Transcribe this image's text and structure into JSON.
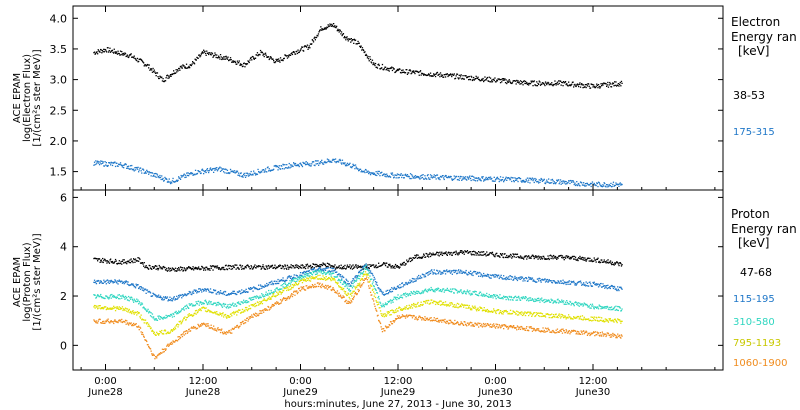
{
  "chart_data": [
    {
      "type": "scatter",
      "ylabel_lines": [
        "ACE EPAM",
        "log(Electron Flux)",
        "[1/(cm²s ster MeV)]"
      ],
      "ylim": [
        1.2,
        4.2
      ],
      "yticks": [
        1.5,
        2.0,
        2.5,
        3.0,
        3.5,
        4.0
      ],
      "ytick_labels": [
        "1.5",
        "2.0",
        "2.5",
        "3.0",
        "3.5",
        "4.0"
      ],
      "legend_title": [
        "Electron",
        "Energy ran",
        "[keV]"
      ],
      "series": [
        {
          "name": "38-53",
          "color": "#000000",
          "x": [
            -1.5,
            0,
            3,
            5,
            7,
            9,
            10.5,
            12,
            15,
            17,
            19,
            21,
            23,
            25,
            26.5,
            28,
            29.5,
            31,
            33,
            36,
            40,
            44,
            48,
            52,
            56,
            60,
            63.5
          ],
          "y": [
            3.45,
            3.5,
            3.4,
            3.25,
            3.0,
            3.2,
            3.25,
            3.45,
            3.35,
            3.25,
            3.45,
            3.3,
            3.45,
            3.55,
            3.85,
            3.9,
            3.7,
            3.6,
            3.25,
            3.15,
            3.1,
            3.05,
            3.0,
            2.95,
            2.95,
            2.9,
            2.95
          ]
        },
        {
          "name": "175-315",
          "color": "#1f77c8",
          "x": [
            -1.5,
            2,
            5,
            8,
            11,
            14,
            17,
            20,
            23,
            26,
            28,
            30,
            32,
            35,
            40,
            45,
            50,
            55,
            60,
            63.5
          ],
          "y": [
            1.65,
            1.62,
            1.5,
            1.35,
            1.5,
            1.55,
            1.45,
            1.55,
            1.62,
            1.65,
            1.7,
            1.62,
            1.5,
            1.45,
            1.42,
            1.4,
            1.38,
            1.35,
            1.3,
            1.3
          ]
        }
      ]
    },
    {
      "type": "scatter",
      "ylabel_lines": [
        "ACE EPAM",
        "log(Proton Flux)",
        "[1/(cm²s ster MeV)]"
      ],
      "ylim": [
        -1.0,
        6.3
      ],
      "yticks": [
        0,
        2,
        4,
        6
      ],
      "ytick_labels": [
        "0",
        "2",
        "4",
        "6"
      ],
      "legend_title": [
        "Proton",
        "Energy ran",
        "[keV]"
      ],
      "xlabel": "hours:minutes, June 27, 2013 - June 30, 2013",
      "xticks": [
        0,
        12,
        24,
        36,
        48,
        60
      ],
      "xtick_labels": [
        [
          "0:00",
          "June28"
        ],
        [
          "12:00",
          "June28"
        ],
        [
          "0:00",
          "June29"
        ],
        [
          "12:00",
          "June29"
        ],
        [
          "0:00",
          "June30"
        ],
        [
          "12:00",
          "June30"
        ]
      ],
      "xlim": [
        -4,
        76
      ],
      "series": [
        {
          "name": "47-68",
          "color": "#000000",
          "x": [
            -1.5,
            2,
            4,
            5,
            6,
            8,
            12,
            16,
            20,
            24,
            27,
            28,
            32,
            34,
            36,
            38,
            40,
            44,
            48,
            52,
            56,
            60,
            62,
            63.5
          ],
          "y": [
            3.5,
            3.4,
            3.5,
            3.2,
            3.2,
            3.1,
            3.15,
            3.2,
            3.2,
            3.2,
            3.3,
            3.2,
            3.2,
            3.3,
            3.2,
            3.6,
            3.7,
            3.8,
            3.7,
            3.6,
            3.6,
            3.5,
            3.4,
            3.3
          ]
        },
        {
          "name": "115-195",
          "color": "#1f77c8",
          "x": [
            -1.5,
            2,
            4,
            6,
            8,
            10,
            12,
            15,
            18,
            21,
            24,
            26,
            28,
            30,
            32,
            34,
            36,
            40,
            44,
            48,
            52,
            56,
            60,
            63.5
          ],
          "y": [
            2.6,
            2.6,
            2.4,
            2.0,
            1.9,
            2.1,
            2.3,
            2.1,
            2.3,
            2.6,
            2.9,
            3.1,
            3.1,
            2.5,
            3.3,
            2.1,
            2.4,
            3.0,
            3.0,
            2.8,
            2.7,
            2.6,
            2.5,
            2.3
          ]
        },
        {
          "name": "310-580",
          "color": "#2fd6c0",
          "x": [
            -1.5,
            2,
            4,
            6,
            8,
            10,
            12,
            15,
            18,
            21,
            24,
            26,
            28,
            30,
            32,
            34,
            36,
            40,
            44,
            48,
            52,
            56,
            60,
            63.5
          ],
          "y": [
            2.0,
            2.0,
            1.8,
            1.1,
            1.2,
            1.6,
            1.8,
            1.6,
            1.9,
            2.3,
            2.8,
            3.0,
            2.9,
            2.3,
            3.2,
            1.6,
            2.0,
            2.3,
            2.2,
            2.0,
            1.9,
            1.8,
            1.6,
            1.5
          ]
        },
        {
          "name": "795-1193",
          "color": "#e0e000",
          "x": [
            -1.5,
            2,
            4,
            6,
            8,
            10,
            12,
            15,
            18,
            21,
            24,
            26,
            28,
            30,
            32,
            34,
            36,
            40,
            44,
            48,
            52,
            56,
            60,
            63.5
          ],
          "y": [
            1.6,
            1.5,
            1.3,
            0.5,
            0.6,
            1.2,
            1.5,
            1.2,
            1.6,
            2.1,
            2.6,
            2.8,
            2.7,
            2.0,
            3.0,
            1.2,
            1.5,
            1.8,
            1.6,
            1.4,
            1.3,
            1.2,
            1.1,
            1.0
          ]
        },
        {
          "name": "1060-1900",
          "color": "#f08c1e",
          "x": [
            -1.5,
            2,
            4,
            6,
            8,
            10,
            12,
            15,
            18,
            21,
            24,
            26,
            28,
            30,
            32,
            34,
            36,
            40,
            44,
            48,
            52,
            56,
            60,
            63.5
          ],
          "y": [
            1.0,
            1.0,
            0.8,
            -0.5,
            0.1,
            0.6,
            0.9,
            0.5,
            1.2,
            1.7,
            2.3,
            2.5,
            2.3,
            1.7,
            2.8,
            0.6,
            1.2,
            1.1,
            0.9,
            0.8,
            0.7,
            0.6,
            0.5,
            0.4
          ]
        }
      ]
    }
  ]
}
